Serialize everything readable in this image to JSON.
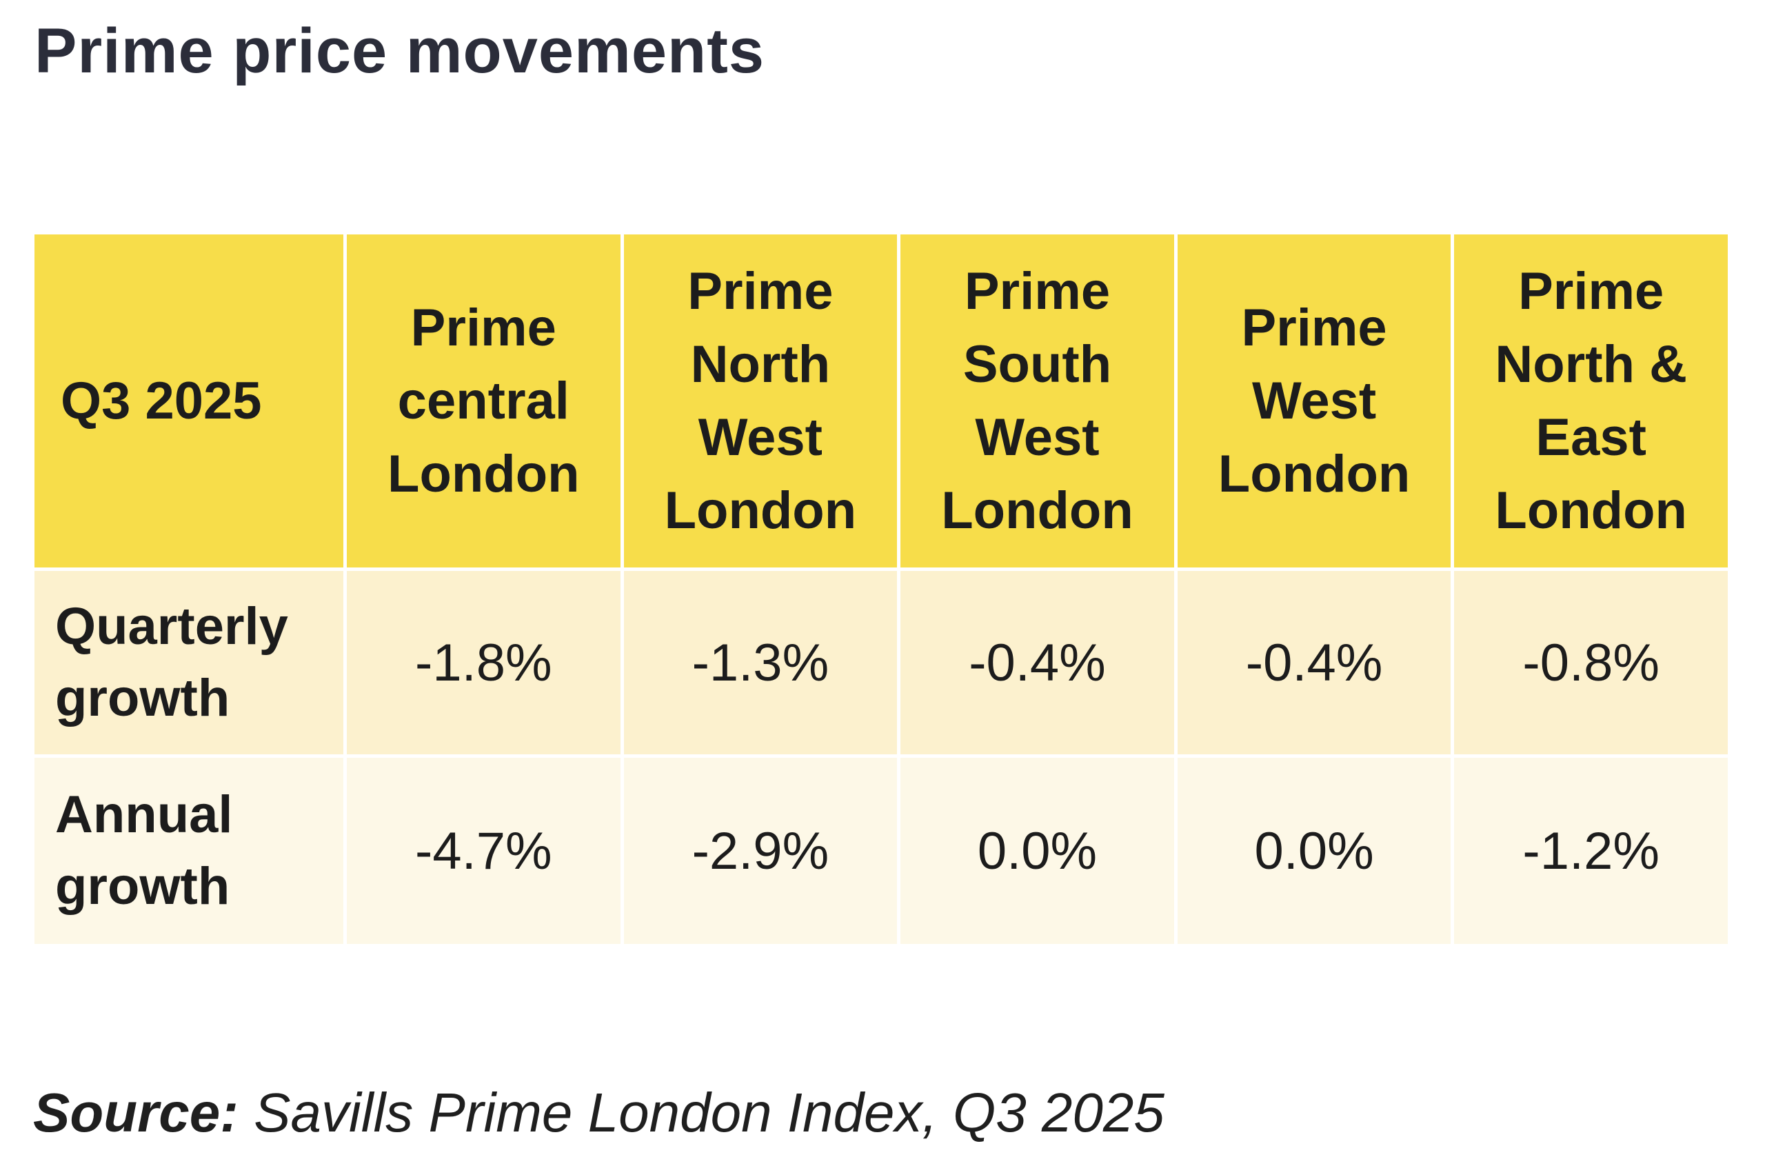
{
  "title": "Prime price movements",
  "chart_data": {
    "type": "table",
    "corner_label": "Q3 2025",
    "columns": [
      "Prime central London",
      "Prime North West London",
      "Prime South West London",
      "Prime West London",
      "Prime North & East London"
    ],
    "rows": [
      {
        "label": "Quarterly growth",
        "values": [
          "-1.8%",
          "-1.3%",
          "-0.4%",
          "-0.4%",
          "-0.8%"
        ]
      },
      {
        "label": "Annual growth",
        "values": [
          "-4.7%",
          "-2.9%",
          "0.0%",
          "0.0%",
          "-1.2%"
        ]
      }
    ]
  },
  "source": {
    "label": "Source:",
    "text": "Savills Prime London Index, Q3 2025"
  },
  "colors": {
    "header_fill": "#f7dd4a",
    "quarterly_row_fill": "#fcf1ce",
    "annual_row_fill": "#fdf8e7"
  }
}
